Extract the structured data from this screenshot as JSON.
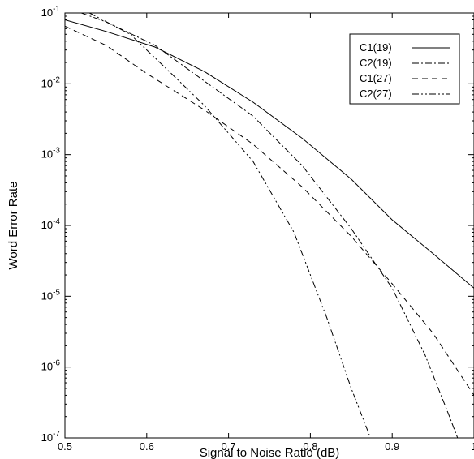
{
  "chart_data": {
    "type": "line",
    "title": "",
    "xlabel": "Signal to Noise Ratio (dB)",
    "ylabel": "Word Error Rate",
    "xlim": [
      0.5,
      1.0
    ],
    "ylim": [
      1e-07,
      0.1
    ],
    "yscale": "log",
    "grid": false,
    "legend_position": "top-right",
    "x_ticks": [
      {
        "value": 0.5,
        "label": "0.5"
      },
      {
        "value": 0.6,
        "label": "0.6"
      },
      {
        "value": 0.7,
        "label": "0.7"
      },
      {
        "value": 0.8,
        "label": "0.8"
      },
      {
        "value": 0.9,
        "label": "0.9"
      },
      {
        "value": 1.0,
        "label": "1"
      }
    ],
    "y_ticks": [
      {
        "exp": -7,
        "base": "10",
        "sup": "-7"
      },
      {
        "exp": -6,
        "base": "10",
        "sup": "-6"
      },
      {
        "exp": -5,
        "base": "10",
        "sup": "-5"
      },
      {
        "exp": -4,
        "base": "10",
        "sup": "-4"
      },
      {
        "exp": -3,
        "base": "10",
        "sup": "-3"
      },
      {
        "exp": -2,
        "base": "10",
        "sup": "-2"
      },
      {
        "exp": -1,
        "base": "10",
        "sup": "-1"
      }
    ],
    "series": [
      {
        "name": "C1(19)",
        "dash": "",
        "points": [
          [
            0.5,
            0.08
          ],
          [
            0.55,
            0.055
          ],
          [
            0.61,
            0.033
          ],
          [
            0.67,
            0.015
          ],
          [
            0.73,
            0.0055
          ],
          [
            0.79,
            0.0017
          ],
          [
            0.85,
            0.00045
          ],
          [
            0.9,
            0.00012
          ],
          [
            0.95,
            4e-05
          ],
          [
            1.0,
            1.3e-05
          ]
        ]
      },
      {
        "name": "C2(19)",
        "dash": "8,3,2,3",
        "points": [
          [
            0.52,
            0.1
          ],
          [
            0.55,
            0.075
          ],
          [
            0.61,
            0.035
          ],
          [
            0.67,
            0.011
          ],
          [
            0.73,
            0.0035
          ],
          [
            0.79,
            0.0007
          ],
          [
            0.85,
            9e-05
          ],
          [
            0.9,
            1.3e-05
          ],
          [
            0.94,
            1.5e-06
          ],
          [
            0.97,
            2e-07
          ],
          [
            0.985,
            7e-08
          ]
        ]
      },
      {
        "name": "C1(27)",
        "dash": "7,5",
        "points": [
          [
            0.5,
            0.065
          ],
          [
            0.55,
            0.035
          ],
          [
            0.6,
            0.014
          ],
          [
            0.67,
            0.0043
          ],
          [
            0.73,
            0.0014
          ],
          [
            0.79,
            0.00035
          ],
          [
            0.85,
            7e-05
          ],
          [
            0.9,
            1.5e-05
          ],
          [
            0.95,
            3e-06
          ],
          [
            1.0,
            4e-07
          ]
        ]
      },
      {
        "name": "C2(27)",
        "dash": "8,3,2,3,2,3",
        "points": [
          [
            0.53,
            0.1
          ],
          [
            0.58,
            0.05
          ],
          [
            0.62,
            0.018
          ],
          [
            0.67,
            0.005
          ],
          [
            0.73,
            0.0008
          ],
          [
            0.78,
            8e-05
          ],
          [
            0.82,
            5e-06
          ],
          [
            0.85,
            5e-07
          ],
          [
            0.875,
            9e-08
          ]
        ]
      }
    ]
  }
}
